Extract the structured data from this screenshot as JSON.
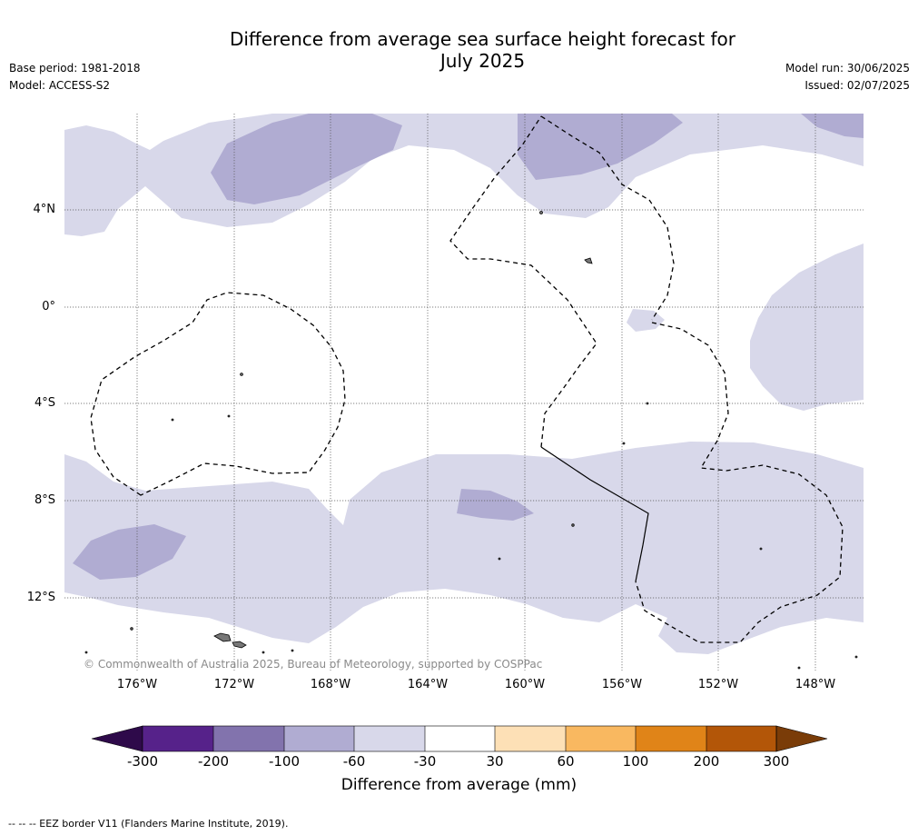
{
  "header": {
    "title_line1": "Difference from average sea surface height forecast for",
    "title_line2": "July 2025",
    "base_period": "Base period: 1981-2018",
    "model": "Model: ACCESS-S2",
    "model_run": "Model run: 30/06/2025",
    "issued": "Issued: 02/07/2025"
  },
  "map": {
    "latitude_labels": [
      "4°N",
      "0°",
      "4°S",
      "8°S",
      "12°S"
    ],
    "longitude_labels": [
      "176°W",
      "172°W",
      "168°W",
      "164°W",
      "160°W",
      "156°W",
      "152°W",
      "148°W"
    ],
    "copyright": "© Commonwealth of Australia 2025, Bureau of Meteorology, supported by COSPPac"
  },
  "colorbar": {
    "ticks": [
      "-300",
      "-200",
      "-100",
      "-60",
      "-30",
      "30",
      "60",
      "100",
      "200",
      "300"
    ],
    "colors": [
      "#2e0a4a",
      "#56228a",
      "#8273ad",
      "#b0acd2",
      "#d8d8ea",
      "#ffffff",
      "#fde0b6",
      "#f9b860",
      "#e08418",
      "#b35608",
      "#7a3c08"
    ],
    "title": "Difference from average (mm)"
  },
  "footnote": "--  --  -- EEZ border V11 (Flanders Marine Institute, 2019)."
}
